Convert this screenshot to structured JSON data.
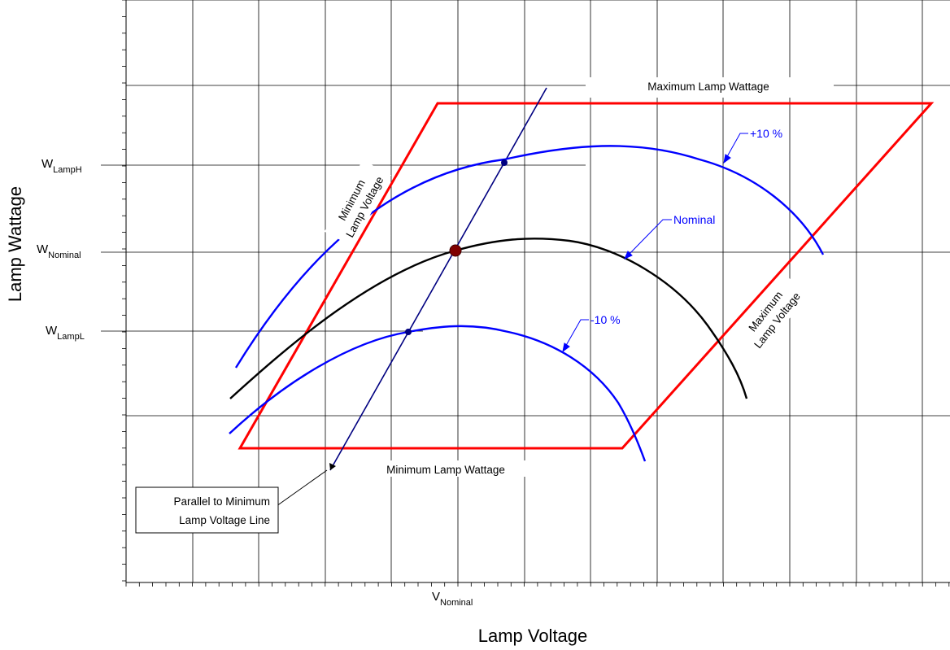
{
  "axes": {
    "x_title": "Lamp Voltage",
    "y_title": "Lamp Wattage"
  },
  "y_markers": {
    "lamp_h": {
      "main": "W",
      "sub": "LampH"
    },
    "nominal": {
      "main": "W",
      "sub": "Nominal"
    },
    "lamp_l": {
      "main": "W",
      "sub": "LampL"
    }
  },
  "x_markers": {
    "nominal": {
      "main": "V",
      "sub": "Nominal"
    }
  },
  "boundaries": {
    "max_wattage": "Maximum Lamp Wattage",
    "min_wattage": "Minimum Lamp Wattage",
    "min_voltage": [
      "Minimum",
      "Lamp Voltage"
    ],
    "max_voltage": [
      "Maximum",
      "Lamp Voltage"
    ]
  },
  "curves": {
    "plus10": "+10 %",
    "nominal": "Nominal",
    "minus10": "-10 %"
  },
  "callout": {
    "line1": "Parallel to Minimum",
    "line2": "Lamp Voltage Line"
  },
  "colors": {
    "boundary": "#ff0000",
    "curve": "#0000ff",
    "nominal_curve": "#000000",
    "parallel_line": "#000080",
    "nominal_point": "#800000",
    "grid": "#000000"
  }
}
